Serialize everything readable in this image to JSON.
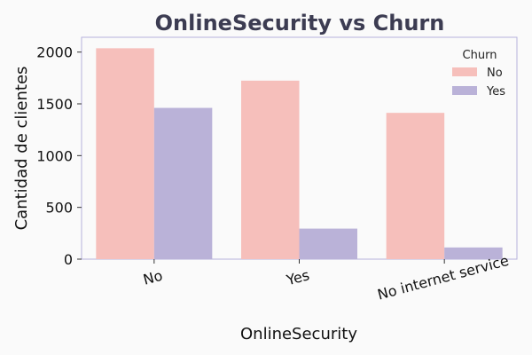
{
  "chart_data": {
    "type": "bar",
    "title": "OnlineSecurity vs Churn",
    "xlabel": "OnlineSecurity",
    "ylabel": "Cantidad de clientes",
    "categories": [
      "No",
      "Yes",
      "No internet service"
    ],
    "series": [
      {
        "name": "No",
        "values": [
          2037,
          1724,
          1413
        ],
        "color": "#f6bfbb"
      },
      {
        "name": "Yes",
        "values": [
          1461,
          295,
          113
        ],
        "color": "#bab2d8"
      }
    ],
    "ylim": [
      0,
      2143
    ],
    "yticks": [
      0,
      500,
      1000,
      1500,
      2000
    ],
    "legend": {
      "title": "Churn",
      "placement": "top-right"
    },
    "grid": false
  }
}
